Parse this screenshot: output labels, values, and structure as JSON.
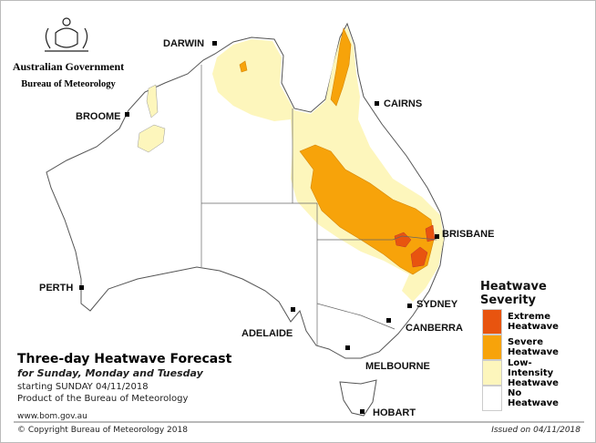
{
  "header": {
    "government": "Australian Government",
    "agency": "Bureau of Meteorology"
  },
  "cities": [
    "DARWIN",
    "CAIRNS",
    "BROOME",
    "BRISBANE",
    "PERTH",
    "SYDNEY",
    "CANBERRA",
    "ADELAIDE",
    "MELBOURNE",
    "HOBART"
  ],
  "legend": {
    "title": "Heatwave Severity",
    "items": [
      {
        "label": "Extreme Heatwave",
        "color": "#e8540f"
      },
      {
        "label": "Severe Heatwave",
        "color": "#f7a30a"
      },
      {
        "label": "Low-Intensity Heatwave",
        "color": "#fdf6bc"
      },
      {
        "label": "No Heatwave",
        "color": "#ffffff"
      }
    ]
  },
  "title_block": {
    "title": "Three-day Heatwave Forecast",
    "subtitle": "for Sunday, Monday and Tuesday",
    "start": "starting SUNDAY 04/11/2018",
    "product": "Product of the Bureau of Meteorology",
    "website": "www.bom.gov.au"
  },
  "footer": {
    "copyright": "© Copyright Bureau of Meteorology 2018",
    "issued": "Issued on 04/11/2018"
  }
}
